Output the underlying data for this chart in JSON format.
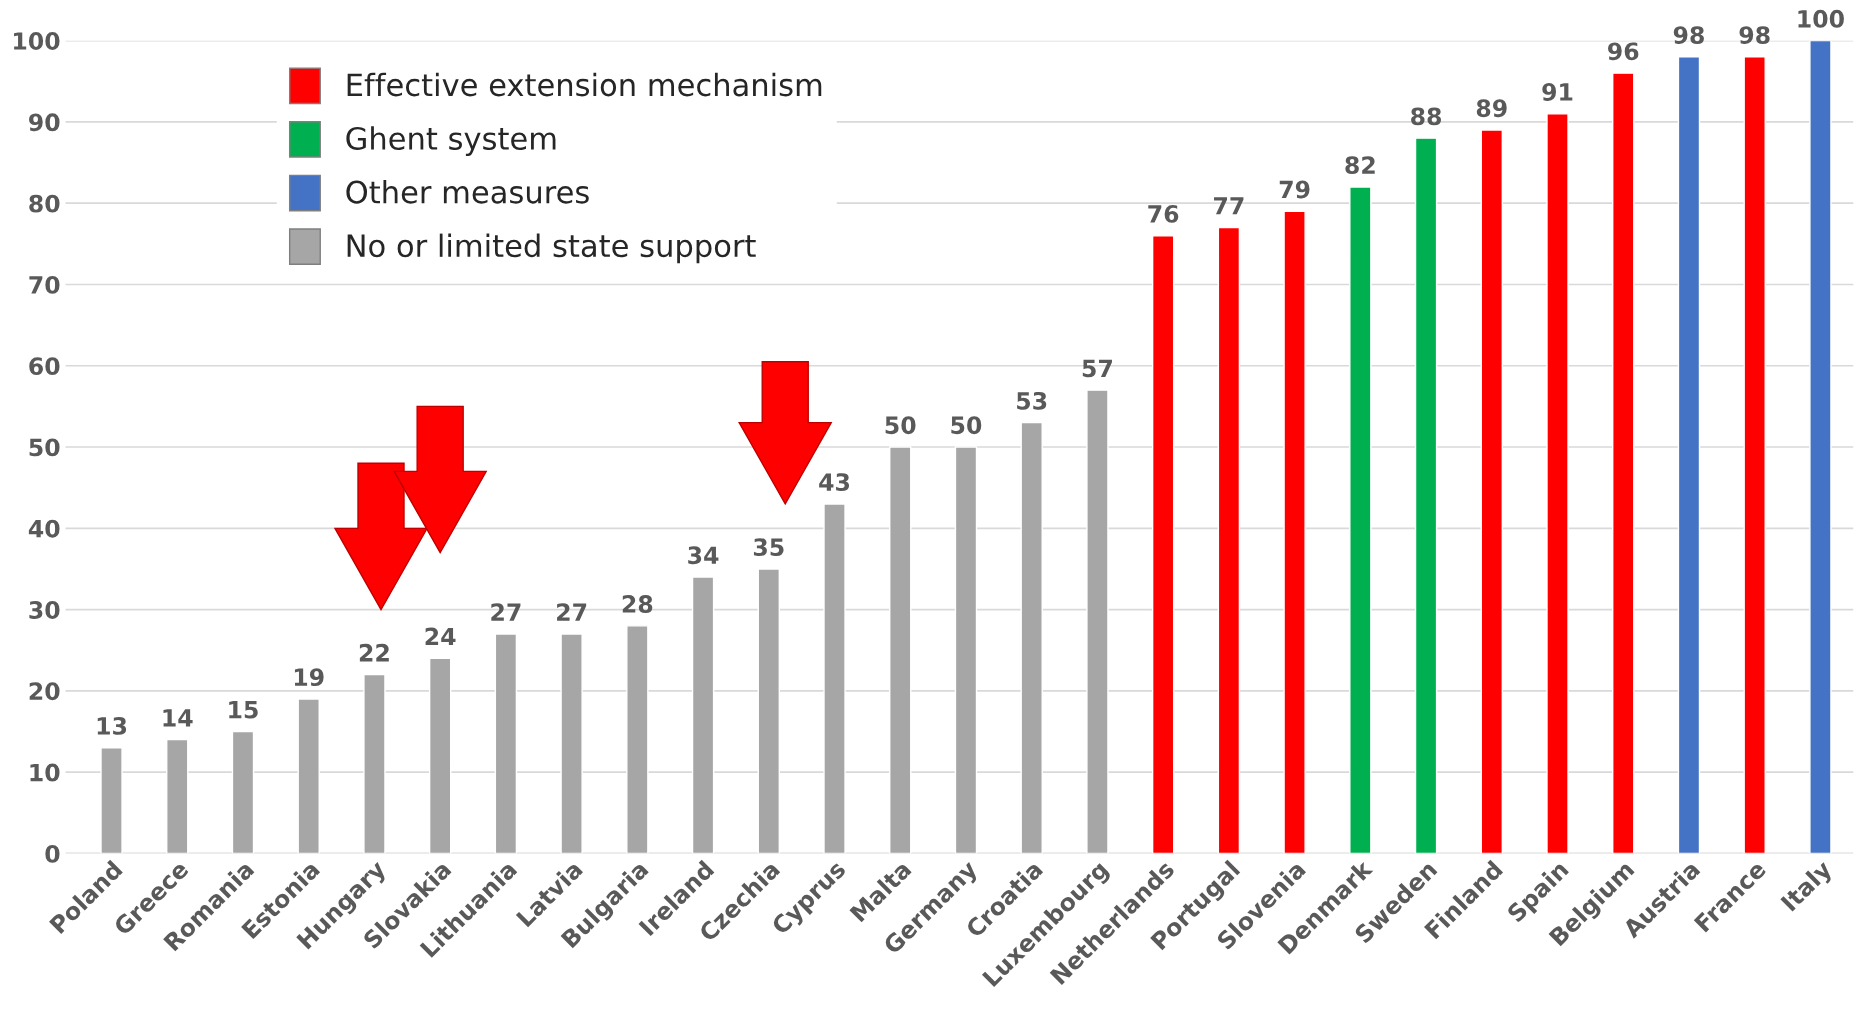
{
  "chart_data": {
    "type": "bar",
    "stacked": true,
    "categories": [
      "Poland",
      "Greece",
      "Romania",
      "Estonia",
      "Hungary",
      "Slovakia",
      "Lithuania",
      "Latvia",
      "Bulgaria",
      "Ireland",
      "Czechia",
      "Cyprus",
      "Malta",
      "Germany",
      "Croatia",
      "Luxembourg",
      "Netherlands",
      "Portugal",
      "Slovenia",
      "Denmark",
      "Sweden",
      "Finland",
      "Spain",
      "Belgium",
      "Austria",
      "France",
      "Italy"
    ],
    "series": [
      {
        "name": "Effective extension mechanism",
        "color": "#ff0000",
        "values": [
          null,
          null,
          null,
          null,
          null,
          null,
          null,
          null,
          null,
          null,
          null,
          null,
          null,
          null,
          null,
          null,
          76,
          77,
          79,
          null,
          null,
          89,
          91,
          96,
          null,
          98,
          null
        ]
      },
      {
        "name": "Ghent system",
        "color": "#00b050",
        "values": [
          null,
          null,
          null,
          null,
          null,
          null,
          null,
          null,
          null,
          null,
          null,
          null,
          null,
          null,
          null,
          null,
          null,
          null,
          null,
          82,
          88,
          null,
          null,
          null,
          null,
          null,
          null
        ]
      },
      {
        "name": "Other measures",
        "color": "#4472c4",
        "values": [
          null,
          null,
          null,
          null,
          null,
          null,
          null,
          null,
          null,
          null,
          null,
          null,
          null,
          null,
          null,
          null,
          null,
          null,
          null,
          null,
          null,
          null,
          null,
          null,
          98,
          null,
          100
        ]
      },
      {
        "name": "No or limited state support",
        "color": "#a6a6a6",
        "values": [
          13,
          14,
          15,
          19,
          22,
          24,
          27,
          27,
          28,
          34,
          35,
          43,
          50,
          50,
          53,
          57,
          null,
          null,
          null,
          null,
          null,
          null,
          null,
          null,
          null,
          null,
          null
        ]
      }
    ],
    "ylim": [
      0,
      100
    ],
    "yticks": [
      0,
      10,
      20,
      30,
      40,
      50,
      60,
      70,
      80,
      90,
      100
    ],
    "grid": "y",
    "legend": "top left",
    "data_labels": true
  }
}
